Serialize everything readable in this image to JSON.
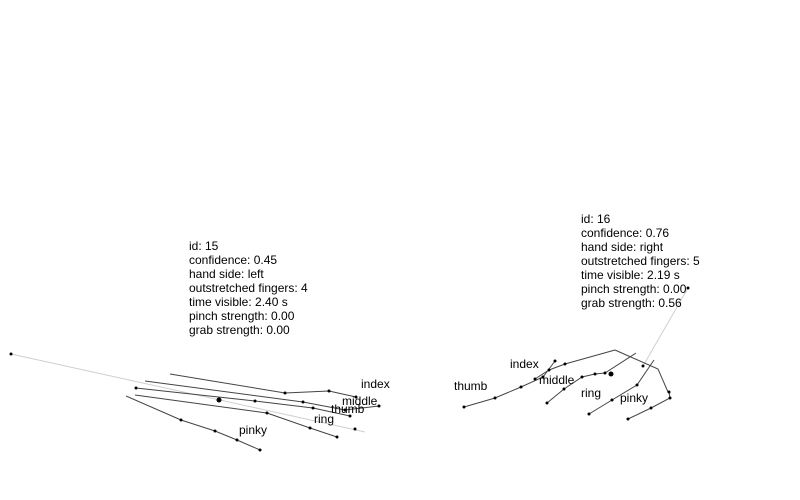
{
  "hands": [
    {
      "id_text": "id: 15",
      "confidence_text": "confidence: 0.45",
      "side_text": "hand side: left",
      "fingers_text": "outstretched fingers: 4",
      "time_text": "time visible: 2.40 s",
      "pinch_text": "pinch strength: 0.00",
      "grab_text": "grab strength: 0.00",
      "finger_labels": {
        "thumb": "thumb",
        "index": "index",
        "middle": "middle",
        "ring": "ring",
        "pinky": "pinky"
      }
    },
    {
      "id_text": "id: 16",
      "confidence_text": "confidence: 0.76",
      "side_text": "hand side: right",
      "fingers_text": "outstretched fingers: 5",
      "time_text": "time visible: 2.19 s",
      "pinch_text": "pinch strength: 0.00",
      "grab_text": "grab strength: 0.56",
      "finger_labels": {
        "thumb": "thumb",
        "index": "index",
        "middle": "middle",
        "ring": "ring",
        "pinky": "pinky"
      }
    }
  ]
}
